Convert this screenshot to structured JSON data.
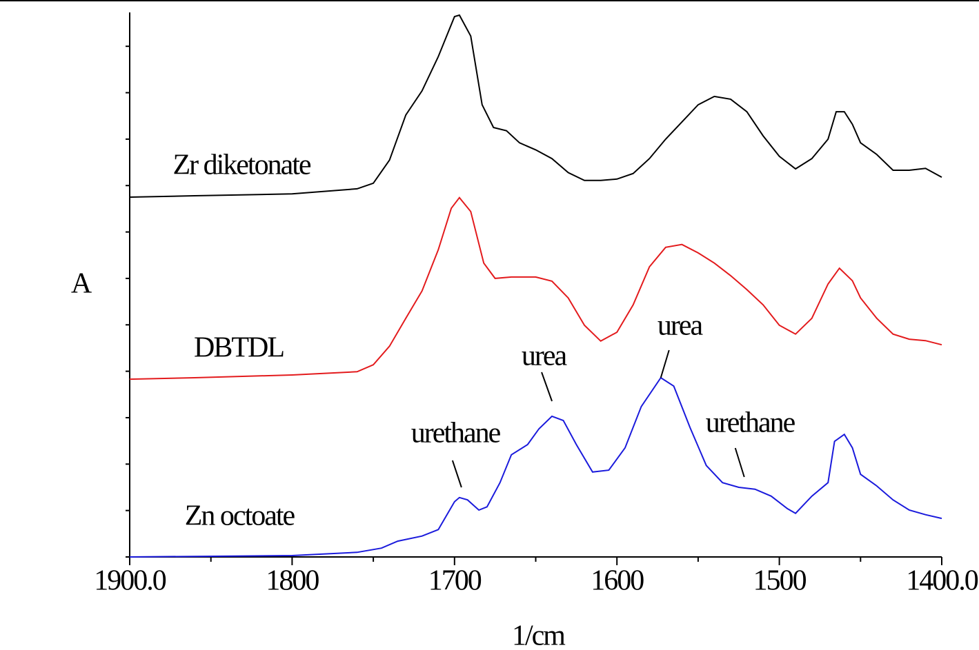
{
  "chart_data": {
    "type": "line",
    "ylabel": "A",
    "xlabel": "1/cm",
    "xlim": [
      1900,
      1400
    ],
    "ylim": [
      0,
      11.73
    ],
    "xticks": [
      {
        "value": 1900,
        "label": "1900.0"
      },
      1800,
      1700,
      1600,
      1500,
      {
        "value": 1400,
        "label": "1400.0"
      }
    ],
    "xminorticks": [
      1850,
      1750,
      1650,
      1550,
      1450
    ],
    "yminorticks": [
      0,
      1,
      2,
      3,
      4,
      5,
      6,
      7,
      8,
      9,
      10,
      11
    ],
    "series": [
      {
        "name": "Zr diketonate",
        "color": "#000000",
        "x": [
          1900,
          1860,
          1800,
          1760,
          1750,
          1740,
          1730,
          1720,
          1710,
          1700,
          1697,
          1690,
          1683,
          1676,
          1668,
          1660,
          1650,
          1640,
          1630,
          1620,
          1610,
          1600,
          1590,
          1580,
          1570,
          1560,
          1550,
          1540,
          1530,
          1520,
          1510,
          1500,
          1490,
          1480,
          1470,
          1465,
          1460,
          1455,
          1450,
          1440,
          1430,
          1420,
          1410,
          1400
        ],
        "values": [
          7.75,
          7.78,
          7.82,
          7.93,
          8.05,
          8.55,
          9.52,
          10.04,
          10.78,
          11.64,
          11.67,
          11.22,
          9.74,
          9.25,
          9.18,
          8.92,
          8.77,
          8.58,
          8.28,
          8.11,
          8.11,
          8.14,
          8.26,
          8.58,
          9.0,
          9.37,
          9.74,
          9.92,
          9.86,
          9.59,
          9.07,
          8.63,
          8.36,
          8.58,
          9.0,
          9.59,
          9.59,
          9.32,
          8.92,
          8.67,
          8.33,
          8.33,
          8.37,
          8.18
        ]
      },
      {
        "name": "DBTDL",
        "color": "#e31a1c",
        "x": [
          1900,
          1860,
          1800,
          1760,
          1750,
          1740,
          1730,
          1720,
          1710,
          1702,
          1697,
          1690,
          1682,
          1675,
          1665,
          1650,
          1640,
          1630,
          1620,
          1610,
          1600,
          1590,
          1580,
          1570,
          1560,
          1550,
          1540,
          1530,
          1520,
          1510,
          1500,
          1490,
          1480,
          1470,
          1463,
          1455,
          1450,
          1440,
          1430,
          1420,
          1410,
          1400
        ],
        "values": [
          3.83,
          3.86,
          3.92,
          3.99,
          4.14,
          4.54,
          5.14,
          5.73,
          6.62,
          7.51,
          7.74,
          7.44,
          6.33,
          6.0,
          6.03,
          6.03,
          5.94,
          5.58,
          4.99,
          4.65,
          4.84,
          5.43,
          6.25,
          6.67,
          6.73,
          6.55,
          6.33,
          6.06,
          5.76,
          5.43,
          4.99,
          4.8,
          5.14,
          5.88,
          6.22,
          5.95,
          5.58,
          5.14,
          4.8,
          4.69,
          4.66,
          4.57
        ]
      },
      {
        "name": "Zn octoate",
        "color": "#1a1adc",
        "x": [
          1900,
          1800,
          1760,
          1745,
          1735,
          1720,
          1710,
          1700,
          1697,
          1692,
          1685,
          1680,
          1672,
          1665,
          1655,
          1648,
          1640,
          1633,
          1625,
          1615,
          1605,
          1595,
          1585,
          1573,
          1565,
          1555,
          1545,
          1535,
          1525,
          1515,
          1505,
          1495,
          1490,
          1480,
          1470,
          1466,
          1460,
          1455,
          1450,
          1440,
          1430,
          1420,
          1410,
          1400
        ],
        "values": [
          0.0,
          0.03,
          0.1,
          0.19,
          0.34,
          0.45,
          0.59,
          1.19,
          1.28,
          1.23,
          1.01,
          1.08,
          1.6,
          2.2,
          2.42,
          2.76,
          3.03,
          2.94,
          2.42,
          1.83,
          1.87,
          2.35,
          3.24,
          3.86,
          3.68,
          2.79,
          1.97,
          1.6,
          1.5,
          1.46,
          1.31,
          1.04,
          0.94,
          1.31,
          1.6,
          2.49,
          2.64,
          2.35,
          1.78,
          1.53,
          1.23,
          1.01,
          0.91,
          0.83
        ]
      }
    ],
    "annotations": [
      {
        "text": "urethane",
        "x": 1697
      },
      {
        "text": "urea",
        "x": 1640
      },
      {
        "text": "urea",
        "x": 1573
      },
      {
        "text": "urethane",
        "x": 1525
      }
    ]
  }
}
